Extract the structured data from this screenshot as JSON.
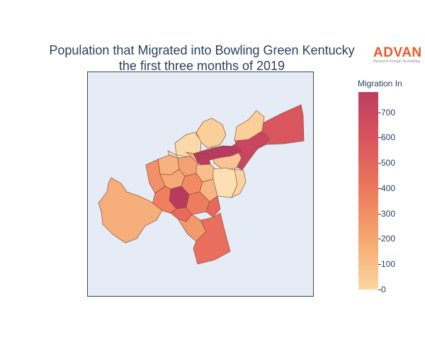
{
  "title": {
    "line1": "Population that Migrated into Bowling Green Kentucky",
    "line2": "the first three months of 2019"
  },
  "logo": {
    "word": "ADVAN",
    "tagline": "Research through Technology"
  },
  "colorbar": {
    "title": "Migration In",
    "range": [
      0,
      780
    ],
    "ticks": [
      "0",
      "100",
      "200",
      "300",
      "400",
      "500",
      "600",
      "700"
    ],
    "tick_values": [
      0,
      100,
      200,
      300,
      400,
      500,
      600,
      700
    ],
    "scale_colors": [
      "#fad7a1",
      "#f6a96e",
      "#ec7a5c",
      "#d9565e",
      "#bd3e60"
    ]
  },
  "chart_data": {
    "type": "choropleth",
    "title": "Population that Migrated into Bowling Green Kentucky the first three months of 2019",
    "colorbar_title": "Migration In",
    "colorbar_range": [
      0,
      780
    ],
    "regions": [
      {
        "id": "northeast-corridor",
        "value": 560
      },
      {
        "id": "east-strip",
        "value": 700
      },
      {
        "id": "center-strip",
        "value": 760
      },
      {
        "id": "north-tract",
        "value": 80
      },
      {
        "id": "north-inner",
        "value": 120
      },
      {
        "id": "center-east",
        "value": 60
      },
      {
        "id": "downtown",
        "value": 760
      },
      {
        "id": "west-large",
        "value": 200
      },
      {
        "id": "south-large",
        "value": 500
      },
      {
        "id": "southwest",
        "value": 430
      },
      {
        "id": "south-central",
        "value": 780
      }
    ]
  }
}
